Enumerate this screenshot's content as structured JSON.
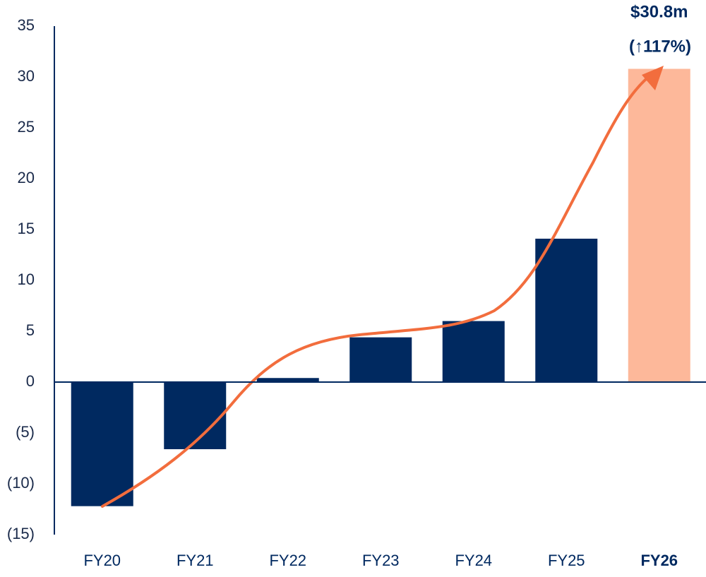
{
  "chart_data": {
    "type": "bar",
    "categories": [
      "FY20",
      "FY21",
      "FY22",
      "FY23",
      "FY24",
      "FY25",
      "FY26"
    ],
    "values": [
      -12.2,
      -6.6,
      0.4,
      4.4,
      6.0,
      14.1,
      30.8
    ],
    "value_labels": [
      null,
      null,
      null,
      null,
      null,
      null,
      "$30.8m"
    ],
    "colors": [
      "#002960",
      "#002960",
      "#002960",
      "#002960",
      "#002960",
      "#002960",
      "#fdb89a"
    ],
    "annotation": "(↑117%)",
    "ylim": [
      -15,
      35
    ],
    "yticks": [
      {
        "value": -15,
        "label": "(15)"
      },
      {
        "value": -10,
        "label": "(10)"
      },
      {
        "value": -5,
        "label": "(5)"
      },
      0,
      5,
      10,
      15,
      20,
      25,
      30,
      35
    ],
    "trend_color": "#f26d3d",
    "grid": false
  }
}
